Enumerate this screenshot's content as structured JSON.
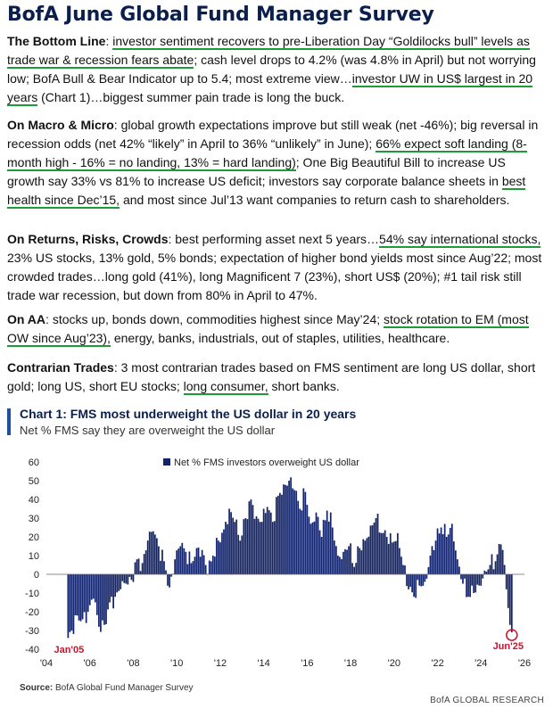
{
  "title": "BofA June Global Fund Manager Survey",
  "sections": {
    "bottom_line": {
      "heading": "The Bottom Line",
      "sep": ": ",
      "u1": "investor sentiment recovers to pre-Liberation Day “Goldilocks bull” levels as trade war & recession fears abate",
      "t1": "; cash level drops to 4.2% (was 4.8% in April) but not worrying low; BofA Bull & Bear Indicator up to 5.4; most extreme view…",
      "u2": "investor UW in US$ largest in 20 years",
      "t2": " (Chart 1)…biggest summer pain trade is long the buck."
    },
    "macro": {
      "heading": "On Macro & Micro",
      "t1": ": global growth expectations improve but still weak (net -46%); big reversal in recession odds (net 42% “likely” in April to 36% “unlikely” in June); ",
      "u1": "66% expect soft landing (8-month high - 16% = no landing, 13% = hard landing)",
      "t2": "; One Big Beautiful Bill to increase US growth say 33% vs 81% to increase US deficit; investors say corporate balance sheets in ",
      "u2": "best health since Dec’15,",
      "t3": " and most since Jul’13 want companies to return cash to shareholders."
    },
    "returns": {
      "heading": "On Returns, Risks, Crowds",
      "t1": ": best performing asset next 5 years…",
      "u1": "54% say international stocks,",
      "t2": " 23% US stocks, 13% gold, 5% bonds; expectation of higher bond yields most since Aug’22; most crowded trades…long gold (41%), long Magnificent 7 (23%), short US$ (20%); #1 tail risk still trade war recession, but down from 80% in April to 47%."
    },
    "aa": {
      "heading": "On AA",
      "t1": ": stocks up, bonds down, commodities highest since May’24; ",
      "u1": "stock rotation to EM (most OW since Aug’23),",
      "t2": " energy, banks, industrials, out of staples, utilities, healthcare."
    },
    "contrarian": {
      "heading": "Contrarian Trades",
      "t1": ": 3 most contrarian trades based on FMS sentiment are long US dollar, short gold; long US, short EU stocks; ",
      "u1": "long consumer,",
      "t2": " short banks."
    }
  },
  "chart_title": "Chart 1: FMS most underweight the US dollar in 20 years",
  "chart_subtitle": "Net % FMS say they are overweight the US dollar",
  "source_label": "Source:",
  "source_text": " BofA Global Fund Manager Survey",
  "brand": "BofA GLOBAL RESEARCH",
  "colors": {
    "bar": "#13246b",
    "highlight": "#d0102a",
    "underline": "#1f9a3b",
    "title": "#0b1f4d"
  },
  "chart_data": {
    "type": "bar",
    "title": "Chart 1: FMS most underweight the US dollar in 20 years",
    "subtitle": "Net % FMS say they are overweight the US dollar",
    "legend": "Net % FMS investors overweight US dollar",
    "legend_position": "top-center",
    "x_start": "2005-01",
    "x_end": "2025-06",
    "xticks": [
      "'04",
      "'06",
      "'08",
      "'10",
      "'12",
      "'14",
      "'16",
      "'18",
      "'20",
      "'22",
      "'24",
      "'26"
    ],
    "ylim": [
      -40,
      60
    ],
    "yticks": [
      -40,
      -30,
      -20,
      -10,
      0,
      10,
      20,
      30,
      40,
      50,
      60
    ],
    "grid": false,
    "annotations": [
      {
        "text": "Jan'05",
        "date": "2005-01",
        "value": -34
      },
      {
        "text": "Jun'25",
        "date": "2025-06",
        "value": -31
      }
    ],
    "anchors": [
      [
        "2005-01",
        -34
      ],
      [
        "2005-03",
        -30
      ],
      [
        "2005-06",
        -22
      ],
      [
        "2005-09",
        -24
      ],
      [
        "2005-12",
        -20
      ],
      [
        "2006-03",
        -13
      ],
      [
        "2006-06",
        -28
      ],
      [
        "2006-09",
        -27
      ],
      [
        "2006-12",
        -15
      ],
      [
        "2007-03",
        -12
      ],
      [
        "2007-06",
        -8
      ],
      [
        "2007-09",
        -5
      ],
      [
        "2007-12",
        -3
      ],
      [
        "2008-03",
        8
      ],
      [
        "2008-06",
        6
      ],
      [
        "2008-09",
        18
      ],
      [
        "2008-12",
        23
      ],
      [
        "2009-03",
        15
      ],
      [
        "2009-06",
        7
      ],
      [
        "2009-09",
        -7
      ],
      [
        "2009-12",
        8
      ],
      [
        "2010-03",
        15
      ],
      [
        "2010-06",
        12
      ],
      [
        "2010-09",
        6
      ],
      [
        "2010-12",
        14
      ],
      [
        "2011-03",
        13
      ],
      [
        "2011-06",
        0
      ],
      [
        "2011-09",
        10
      ],
      [
        "2011-12",
        18
      ],
      [
        "2012-03",
        24
      ],
      [
        "2012-06",
        35
      ],
      [
        "2012-09",
        28
      ],
      [
        "2012-12",
        18
      ],
      [
        "2013-03",
        30
      ],
      [
        "2013-06",
        40
      ],
      [
        "2013-09",
        31
      ],
      [
        "2013-12",
        28
      ],
      [
        "2014-03",
        36
      ],
      [
        "2014-06",
        28
      ],
      [
        "2014-09",
        42
      ],
      [
        "2014-12",
        48
      ],
      [
        "2015-03",
        50
      ],
      [
        "2015-06",
        45
      ],
      [
        "2015-09",
        35
      ],
      [
        "2015-12",
        44
      ],
      [
        "2016-03",
        27
      ],
      [
        "2016-06",
        33
      ],
      [
        "2016-09",
        20
      ],
      [
        "2016-12",
        34
      ],
      [
        "2017-03",
        25
      ],
      [
        "2017-06",
        10
      ],
      [
        "2017-09",
        12
      ],
      [
        "2017-12",
        15
      ],
      [
        "2018-03",
        4
      ],
      [
        "2018-06",
        14
      ],
      [
        "2018-09",
        18
      ],
      [
        "2018-12",
        26
      ],
      [
        "2019-03",
        30
      ],
      [
        "2019-06",
        22
      ],
      [
        "2019-09",
        20
      ],
      [
        "2019-12",
        17
      ],
      [
        "2020-03",
        22
      ],
      [
        "2020-06",
        5
      ],
      [
        "2020-09",
        -8
      ],
      [
        "2020-12",
        -12
      ],
      [
        "2021-03",
        -6
      ],
      [
        "2021-06",
        -4
      ],
      [
        "2021-09",
        10
      ],
      [
        "2021-12",
        18
      ],
      [
        "2022-03",
        25
      ],
      [
        "2022-06",
        20
      ],
      [
        "2022-09",
        27
      ],
      [
        "2022-12",
        8
      ],
      [
        "2023-03",
        -5
      ],
      [
        "2023-06",
        -12
      ],
      [
        "2023-09",
        -10
      ],
      [
        "2023-12",
        -6
      ],
      [
        "2024-03",
        2
      ],
      [
        "2024-06",
        5
      ],
      [
        "2024-09",
        7
      ],
      [
        "2024-12",
        16
      ],
      [
        "2025-01",
        13
      ],
      [
        "2025-02",
        5
      ],
      [
        "2025-03",
        -8
      ],
      [
        "2025-04",
        -18
      ],
      [
        "2025-05",
        -27
      ],
      [
        "2025-06",
        -31
      ]
    ]
  }
}
